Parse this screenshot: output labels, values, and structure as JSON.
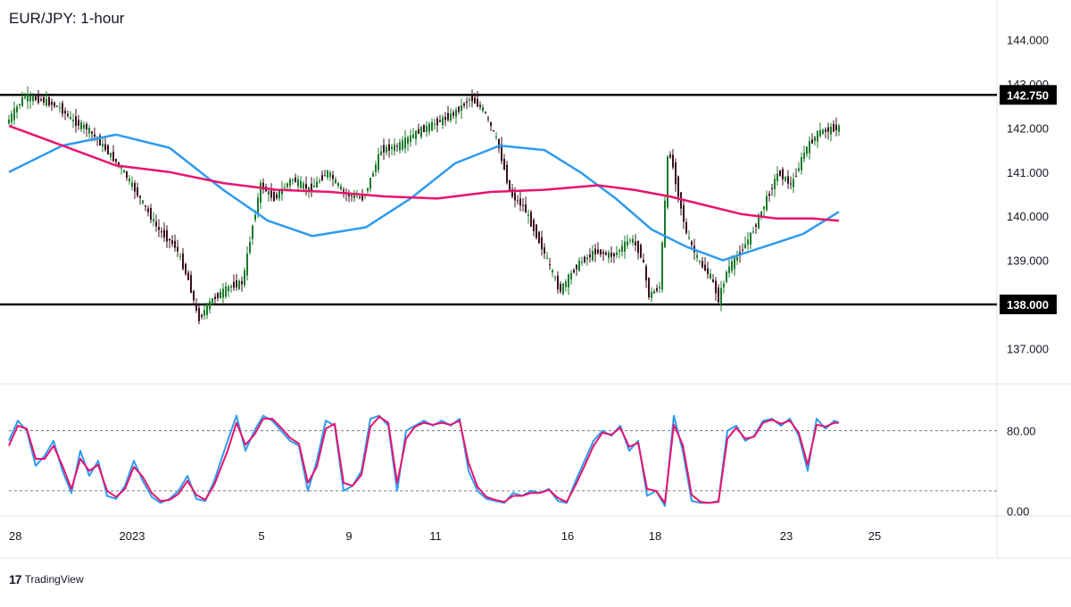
{
  "title": "EUR/JPY: 1-hour",
  "colors": {
    "up": "#1b7a2b",
    "down": "#3b0f1e",
    "ema_fast": "#2e9bef",
    "ema_slow": "#e8146e",
    "stoch_k": "#2e9bef",
    "stoch_d": "#e8146e",
    "level": "#000000"
  },
  "brand": {
    "mark": "17",
    "name": "TradingView"
  },
  "chart_data": [
    {
      "type": "line",
      "name": "price-pane",
      "y_axis": {
        "ticks": [
          "144.000",
          "143.000",
          "142.000",
          "141.000",
          "140.000",
          "139.000",
          "137.000"
        ],
        "range": [
          136.2,
          144.8
        ]
      },
      "x_axis": {
        "labels": [
          "28",
          "2023",
          "5",
          "9",
          "11",
          "16",
          "18",
          "23",
          "25"
        ],
        "range": [
          0,
          1107
        ]
      },
      "levels": [
        {
          "label": "142.750",
          "value": 142.75
        },
        {
          "label": "138.000",
          "value": 138.0
        }
      ],
      "price": {
        "x": [
          0,
          20,
          45,
          60,
          75,
          90,
          110,
          130,
          150,
          170,
          190,
          205,
          215,
          230,
          250,
          265,
          275,
          285,
          300,
          320,
          340,
          360,
          380,
          400,
          420,
          440,
          460,
          480,
          500,
          520,
          535,
          550,
          565,
          580,
          600,
          620,
          640,
          660,
          680,
          700,
          712,
          720,
          732,
          742,
          752,
          762,
          775,
          790,
          798,
          808,
          820,
          835,
          850,
          865,
          880,
          895,
          910,
          930
        ],
        "y": [
          142.1,
          142.72,
          142.6,
          142.45,
          142.15,
          142.0,
          141.55,
          141.05,
          140.4,
          139.7,
          139.3,
          138.5,
          137.65,
          138.1,
          138.4,
          138.5,
          139.7,
          140.7,
          140.4,
          140.85,
          140.6,
          141.0,
          140.5,
          140.4,
          141.5,
          141.6,
          141.9,
          142.1,
          142.3,
          142.68,
          142.4,
          141.7,
          140.5,
          140.2,
          139.3,
          138.3,
          138.9,
          139.2,
          139.1,
          139.5,
          139.1,
          138.2,
          138.4,
          141.6,
          140.6,
          139.6,
          139.0,
          138.6,
          138.1,
          138.8,
          139.1,
          139.6,
          140.3,
          141.0,
          140.7,
          141.5,
          141.9,
          142.0
        ]
      },
      "series": [
        {
          "x": [
            0,
            60,
            120,
            180,
            240,
            290,
            340,
            400,
            450,
            500,
            550,
            600,
            640,
            680,
            720,
            760,
            800,
            830,
            860,
            890,
            930
          ],
          "y": [
            141.0,
            141.6,
            141.85,
            141.55,
            140.6,
            139.9,
            139.55,
            139.75,
            140.4,
            141.2,
            141.6,
            141.5,
            141.0,
            140.4,
            139.7,
            139.3,
            139.0,
            139.2,
            139.4,
            139.6,
            140.1
          ]
        },
        {
          "x": [
            0,
            60,
            120,
            180,
            240,
            300,
            360,
            420,
            480,
            540,
            600,
            660,
            700,
            740,
            780,
            820,
            860,
            900,
            930
          ],
          "y": [
            142.05,
            141.6,
            141.15,
            141.0,
            140.75,
            140.6,
            140.55,
            140.45,
            140.4,
            140.55,
            140.6,
            140.7,
            140.6,
            140.45,
            140.25,
            140.05,
            139.95,
            139.95,
            139.9
          ]
        }
      ]
    },
    {
      "type": "line",
      "name": "stochastic-pane",
      "y_axis": {
        "ticks": [
          "80.00",
          "0.00"
        ],
        "range": [
          -5,
          125
        ]
      },
      "bands": [
        80,
        20
      ],
      "series": [
        {
          "x": [
            0,
            10,
            20,
            30,
            40,
            50,
            60,
            70,
            80,
            90,
            100,
            110,
            120,
            130,
            140,
            150,
            160,
            170,
            180,
            190,
            200,
            210,
            220,
            230,
            245,
            255,
            265,
            275,
            285,
            295,
            305,
            315,
            325,
            335,
            345,
            355,
            365,
            375,
            385,
            395,
            405,
            415,
            425,
            435,
            445,
            455,
            465,
            475,
            485,
            495,
            505,
            515,
            525,
            535,
            545,
            555,
            565,
            575,
            585,
            595,
            605,
            615,
            625,
            635,
            645,
            655,
            665,
            675,
            685,
            695,
            705,
            715,
            725,
            735,
            745,
            755,
            765,
            775,
            785,
            795,
            805,
            815,
            825,
            835,
            845,
            855,
            865,
            875,
            885,
            895,
            905,
            915,
            925,
            930
          ],
          "y": [
            70,
            90,
            80,
            45,
            55,
            70,
            40,
            18,
            60,
            35,
            50,
            15,
            12,
            25,
            50,
            30,
            14,
            8,
            12,
            20,
            35,
            12,
            10,
            30,
            70,
            95,
            60,
            80,
            95,
            90,
            80,
            70,
            65,
            20,
            50,
            90,
            85,
            20,
            25,
            40,
            92,
            95,
            85,
            20,
            80,
            85,
            90,
            85,
            90,
            85,
            92,
            40,
            20,
            12,
            10,
            8,
            18,
            15,
            20,
            18,
            22,
            10,
            8,
            30,
            50,
            70,
            80,
            75,
            85,
            60,
            70,
            15,
            20,
            5,
            95,
            60,
            10,
            8,
            8,
            10,
            80,
            85,
            70,
            75,
            90,
            92,
            85,
            92,
            75,
            40,
            92,
            82,
            90,
            88
          ]
        },
        {
          "x": [
            0,
            10,
            20,
            30,
            40,
            50,
            60,
            70,
            80,
            90,
            100,
            110,
            120,
            130,
            140,
            150,
            160,
            170,
            180,
            190,
            200,
            210,
            220,
            230,
            245,
            255,
            265,
            275,
            285,
            295,
            305,
            315,
            325,
            335,
            345,
            355,
            365,
            375,
            385,
            395,
            405,
            415,
            425,
            435,
            445,
            455,
            465,
            475,
            485,
            495,
            505,
            515,
            525,
            535,
            545,
            555,
            565,
            575,
            585,
            595,
            605,
            615,
            625,
            635,
            645,
            655,
            665,
            675,
            685,
            695,
            705,
            715,
            725,
            735,
            745,
            755,
            765,
            775,
            785,
            795,
            805,
            815,
            825,
            835,
            845,
            855,
            865,
            875,
            885,
            895,
            905,
            915,
            925,
            930
          ],
          "y": [
            65,
            85,
            82,
            52,
            52,
            65,
            45,
            22,
            52,
            40,
            46,
            20,
            14,
            22,
            44,
            34,
            18,
            10,
            11,
            17,
            30,
            16,
            11,
            26,
            60,
            88,
            66,
            76,
            92,
            92,
            83,
            73,
            67,
            28,
            44,
            82,
            87,
            28,
            25,
            36,
            84,
            94,
            88,
            28,
            72,
            84,
            88,
            86,
            88,
            86,
            90,
            48,
            24,
            14,
            11,
            9,
            15,
            15,
            18,
            18,
            21,
            13,
            9,
            26,
            45,
            65,
            78,
            76,
            83,
            64,
            68,
            22,
            20,
            8,
            86,
            66,
            16,
            9,
            8,
            9,
            72,
            83,
            72,
            74,
            88,
            91,
            87,
            90,
            78,
            46,
            86,
            84,
            88,
            88
          ]
        }
      ]
    }
  ]
}
